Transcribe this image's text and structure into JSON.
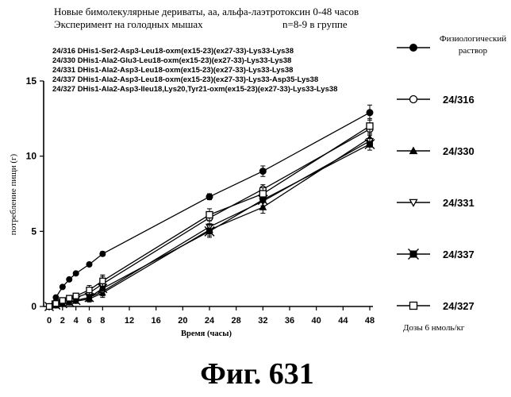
{
  "header": {
    "line1": "Новые бимолекулярные дериваты, аа, альфа-лаэтротоксин 0-48 часов",
    "line2_left": "Эксперимент на голодных мышах",
    "line2_right": "n=8-9 в группе"
  },
  "compounds": [
    "24/316 DHis1-Ser2-Asp3-Leu18-oxm(ex15-23)(ex27-33)-Lys33-Lys38",
    "24/330 DHis1-Ala2-Glu3-Leu18-oxm(ex15-23)(ex27-33)-Lys33-Lys38",
    "24/331 DHis1-Ala2-Asp3-Leu18-oxm(ex15-23)(ex27-33)-Lys33-Lys38",
    "24/337 DHis1-Ala2-Asp3-Leu18-oxm(ex15-23)(ex27-33)-Lys33-Asp35-Lys38",
    "24/327 DHis1-Ala2-Asp3-Ileu18,Lys20,Tyr21-oxm(ex15-23)(ex27-33)-Lys33-Lys38"
  ],
  "dose_note": "Дозы 6 нмоль/кг",
  "figure_label": "Фиг. 631",
  "chart_data": {
    "type": "line",
    "xlabel": "Время (часы)",
    "ylabel": "потребление пищи (г)",
    "xlim": [
      0,
      48
    ],
    "ylim": [
      0,
      15
    ],
    "x_ticks": [
      0,
      2,
      4,
      6,
      8,
      12,
      16,
      20,
      24,
      28,
      32,
      36,
      40,
      44,
      48
    ],
    "y_ticks": [
      0,
      5,
      10,
      15
    ],
    "y_tick_labels": [
      "0",
      "5",
      "10",
      "15"
    ],
    "legend_position": "right",
    "series": [
      {
        "name": "Физиологический раствор",
        "marker": "circle-filled",
        "x": [
          0,
          1,
          2,
          3,
          4,
          6,
          8,
          24,
          32,
          48
        ],
        "y": [
          0,
          0.6,
          1.3,
          1.8,
          2.2,
          2.8,
          3.5,
          7.3,
          9.0,
          12.9
        ],
        "err": [
          0,
          0,
          0,
          0,
          0,
          0,
          0.15,
          0.2,
          0.35,
          0.5
        ]
      },
      {
        "name": "24/316",
        "marker": "circle-open",
        "x": [
          0,
          1,
          2,
          3,
          4,
          6,
          8,
          24,
          32,
          48
        ],
        "y": [
          0,
          0.1,
          0.3,
          0.5,
          0.6,
          0.9,
          1.5,
          5.9,
          7.8,
          11.8
        ],
        "err": [
          0,
          0,
          0,
          0,
          0.1,
          0.3,
          0.5,
          0.4,
          0.3,
          0.4
        ]
      },
      {
        "name": "24/330",
        "marker": "triangle-up",
        "x": [
          0,
          1,
          2,
          3,
          4,
          6,
          8,
          24,
          32,
          48
        ],
        "y": [
          0,
          0.05,
          0.15,
          0.25,
          0.35,
          0.5,
          0.9,
          5.1,
          6.6,
          11.2
        ],
        "err": [
          0,
          0,
          0,
          0,
          0.1,
          0.2,
          0.3,
          0.4,
          0.4,
          0.4
        ]
      },
      {
        "name": "24/331",
        "marker": "triangle-down",
        "x": [
          0,
          1,
          2,
          3,
          4,
          6,
          8,
          24,
          32,
          48
        ],
        "y": [
          0,
          0.1,
          0.2,
          0.3,
          0.4,
          0.6,
          1.0,
          5.3,
          7.0,
          11.0
        ],
        "err": [
          0,
          0,
          0,
          0,
          0.1,
          0.2,
          0.3,
          0.4,
          0.4,
          0.4
        ]
      },
      {
        "name": "24/337",
        "marker": "square-x",
        "x": [
          0,
          1,
          2,
          3,
          4,
          6,
          8,
          24,
          32,
          48
        ],
        "y": [
          0,
          0.1,
          0.2,
          0.3,
          0.4,
          0.6,
          1.2,
          5.0,
          7.1,
          10.8
        ],
        "err": [
          0,
          0,
          0,
          0,
          0.1,
          0.2,
          0.3,
          0.4,
          0.4,
          0.4
        ]
      },
      {
        "name": "24/327",
        "marker": "square-open",
        "x": [
          0,
          1,
          2,
          3,
          4,
          6,
          8,
          24,
          32,
          48
        ],
        "y": [
          0,
          0.2,
          0.4,
          0.55,
          0.7,
          1.1,
          1.7,
          6.1,
          7.5,
          12.0
        ],
        "err": [
          0,
          0,
          0,
          0,
          0.1,
          0.3,
          0.4,
          0.4,
          0.4,
          0.5
        ]
      }
    ]
  }
}
